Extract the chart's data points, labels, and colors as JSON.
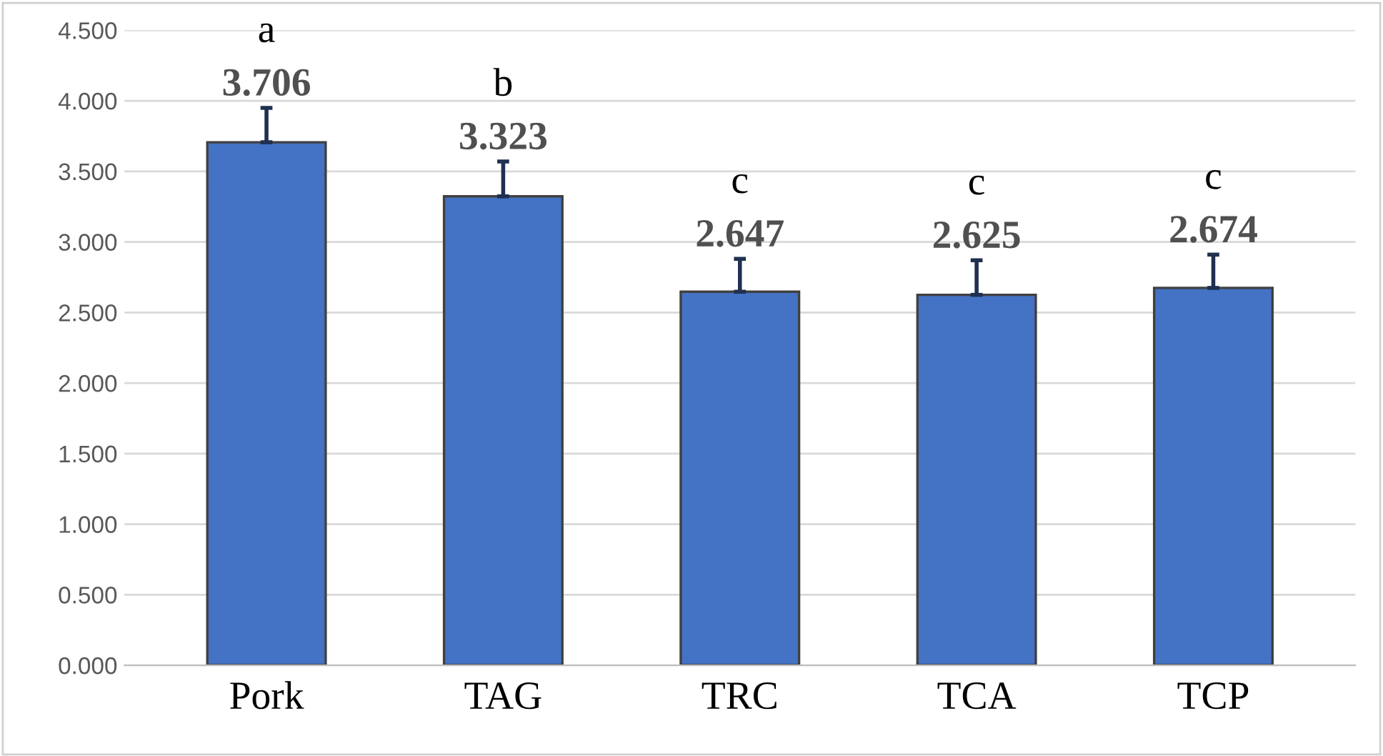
{
  "chart_data": {
    "type": "bar",
    "categories": [
      "Pork",
      "TAG",
      "TRC",
      "TCA",
      "TCP"
    ],
    "values": [
      3.706,
      3.323,
      2.647,
      2.625,
      2.674
    ],
    "errors": [
      [
        3.706,
        3.95
      ],
      [
        3.323,
        3.57
      ],
      [
        2.647,
        2.88
      ],
      [
        2.625,
        2.87
      ],
      [
        2.674,
        2.91
      ]
    ],
    "color": "#4472c4",
    "data_labels": true,
    "annotations": [
      "a",
      "b",
      "c",
      "c",
      "c"
    ],
    "ylim": [
      0,
      4.5
    ],
    "yticks": [
      {
        "value": 0,
        "label": "0.000"
      },
      {
        "value": 0.5,
        "label": "0.500"
      },
      {
        "value": 1,
        "label": "1.000"
      },
      {
        "value": 1.5,
        "label": "1.500"
      },
      {
        "value": 2,
        "label": "2.000"
      },
      {
        "value": 2.5,
        "label": "2.500"
      },
      {
        "value": 3,
        "label": "3.000"
      },
      {
        "value": 3.5,
        "label": "3.500"
      },
      {
        "value": 4,
        "label": "4.000"
      },
      {
        "value": 4.5,
        "label": "4.500"
      }
    ],
    "grid": "y"
  }
}
